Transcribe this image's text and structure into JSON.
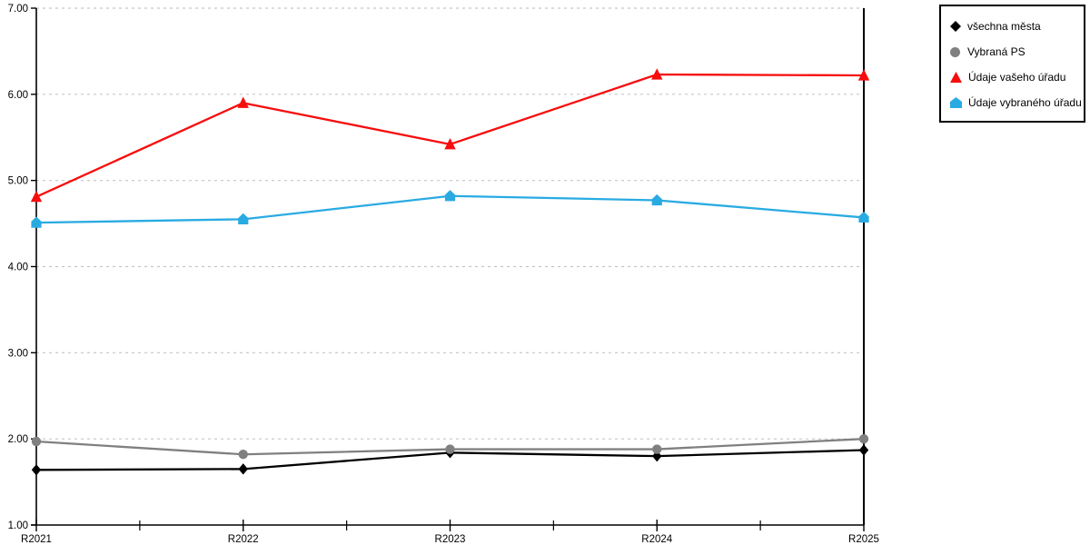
{
  "chart_data": {
    "type": "line",
    "categories": [
      "R2021",
      "R2022",
      "R2023",
      "R2024",
      "R2025"
    ],
    "series": [
      {
        "name": "všechna města",
        "marker": "diamond",
        "color": "#000000",
        "values": [
          1.64,
          1.65,
          1.84,
          1.8,
          1.87
        ]
      },
      {
        "name": "Vybraná PS",
        "marker": "circle",
        "color": "#808080",
        "values": [
          1.97,
          1.82,
          1.88,
          1.88,
          2.0
        ]
      },
      {
        "name": "Údaje vašeho úřadu",
        "marker": "triangle",
        "color": "#F70D0D",
        "values": [
          4.81,
          5.9,
          5.42,
          6.23,
          6.22
        ]
      },
      {
        "name": "Údaje vybraného úřadu",
        "marker": "pentagon",
        "color": "#29ABE2",
        "values": [
          4.51,
          4.55,
          4.82,
          4.77,
          4.57
        ]
      }
    ],
    "ylim": [
      1,
      7
    ],
    "ytick_labels": [
      "1.00",
      "2.00",
      "3.00",
      "4.00",
      "5.00",
      "6.00",
      "7.00"
    ],
    "grid": "horizontal dashed",
    "grid_color": "#c6c6c6",
    "axis_color": "#000000",
    "legend_position": "outside-top-right"
  }
}
